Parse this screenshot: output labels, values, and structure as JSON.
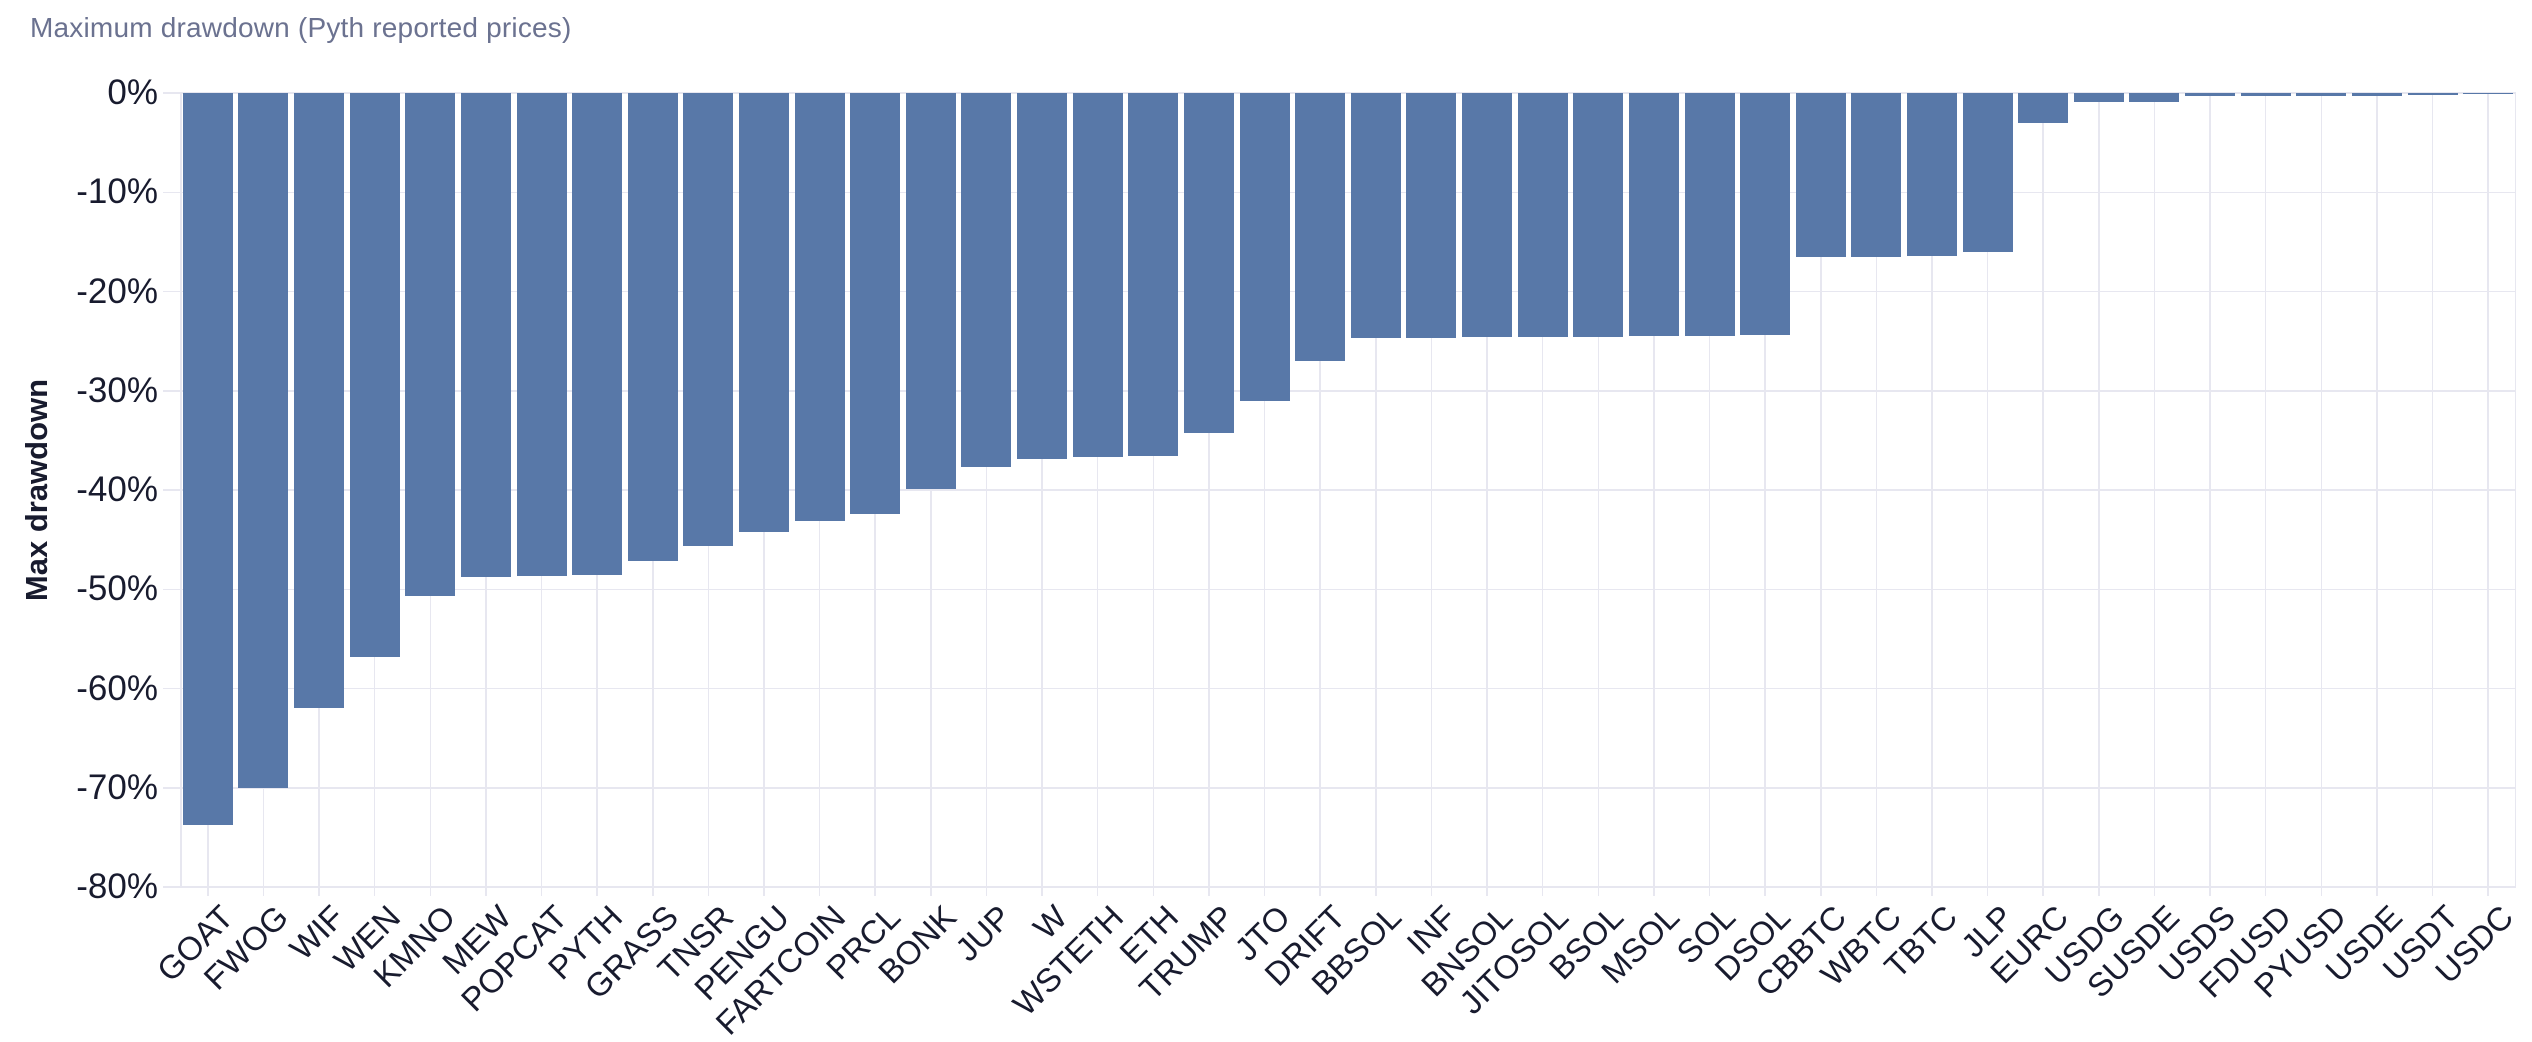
{
  "header": {
    "title": "Maximum drawdown (Pyth reported prices)"
  },
  "colors": {
    "background": "#ffffff",
    "bar": "#5878a8",
    "grid": "#e7e7f0",
    "tick_text": "#181b2e",
    "title_text": "#6b7290"
  },
  "chart_data": {
    "type": "bar",
    "title": "Maximum drawdown (Pyth reported prices)",
    "xlabel": "",
    "ylabel": "Max drawdown",
    "ylim": [
      -80,
      0
    ],
    "grid": true,
    "legend": false,
    "bar_color": "#5878a8",
    "y_ticks": [
      {
        "v": 0,
        "label": "0%"
      },
      {
        "v": -10,
        "label": "-10%"
      },
      {
        "v": -20,
        "label": "-20%"
      },
      {
        "v": -30,
        "label": "-30%"
      },
      {
        "v": -40,
        "label": "-40%"
      },
      {
        "v": -50,
        "label": "-50%"
      },
      {
        "v": -60,
        "label": "-60%"
      },
      {
        "v": -70,
        "label": "-70%"
      },
      {
        "v": -80,
        "label": "-80%"
      }
    ],
    "categories": [
      "GOAT",
      "FWOG",
      "WIF",
      "WEN",
      "KMNO",
      "MEW",
      "POPCAT",
      "PYTH",
      "GRASS",
      "TNSR",
      "PENGU",
      "FARTCOIN",
      "PRCL",
      "BONK",
      "JUP",
      "W",
      "WSTETH",
      "ETH",
      "TRUMP",
      "JTO",
      "DRIFT",
      "BBSOL",
      "INF",
      "BNSOL",
      "JITOSOL",
      "BSOL",
      "MSOL",
      "SOL",
      "DSOL",
      "CBBTC",
      "WBTC",
      "TBTC",
      "JLP",
      "EURC",
      "USDG",
      "SUSDE",
      "USDS",
      "FDUSD",
      "PYUSD",
      "USDE",
      "USDT",
      "USDC"
    ],
    "values": [
      -73.8,
      -70,
      -62,
      -56.8,
      -50.7,
      -48.8,
      -48.7,
      -48.6,
      -47.2,
      -45.6,
      -44.2,
      -43.1,
      -42.4,
      -39.9,
      -37.7,
      -36.9,
      -36.7,
      -36.6,
      -34.3,
      -31,
      -27,
      -24.7,
      -24.7,
      -24.6,
      -24.6,
      -24.6,
      -24.5,
      -24.5,
      -24.4,
      -16.5,
      -16.5,
      -16.4,
      -16,
      -3,
      -0.95,
      -0.9,
      -0.35,
      -0.35,
      -0.35,
      -0.35,
      -0.25,
      -0.05
    ]
  }
}
